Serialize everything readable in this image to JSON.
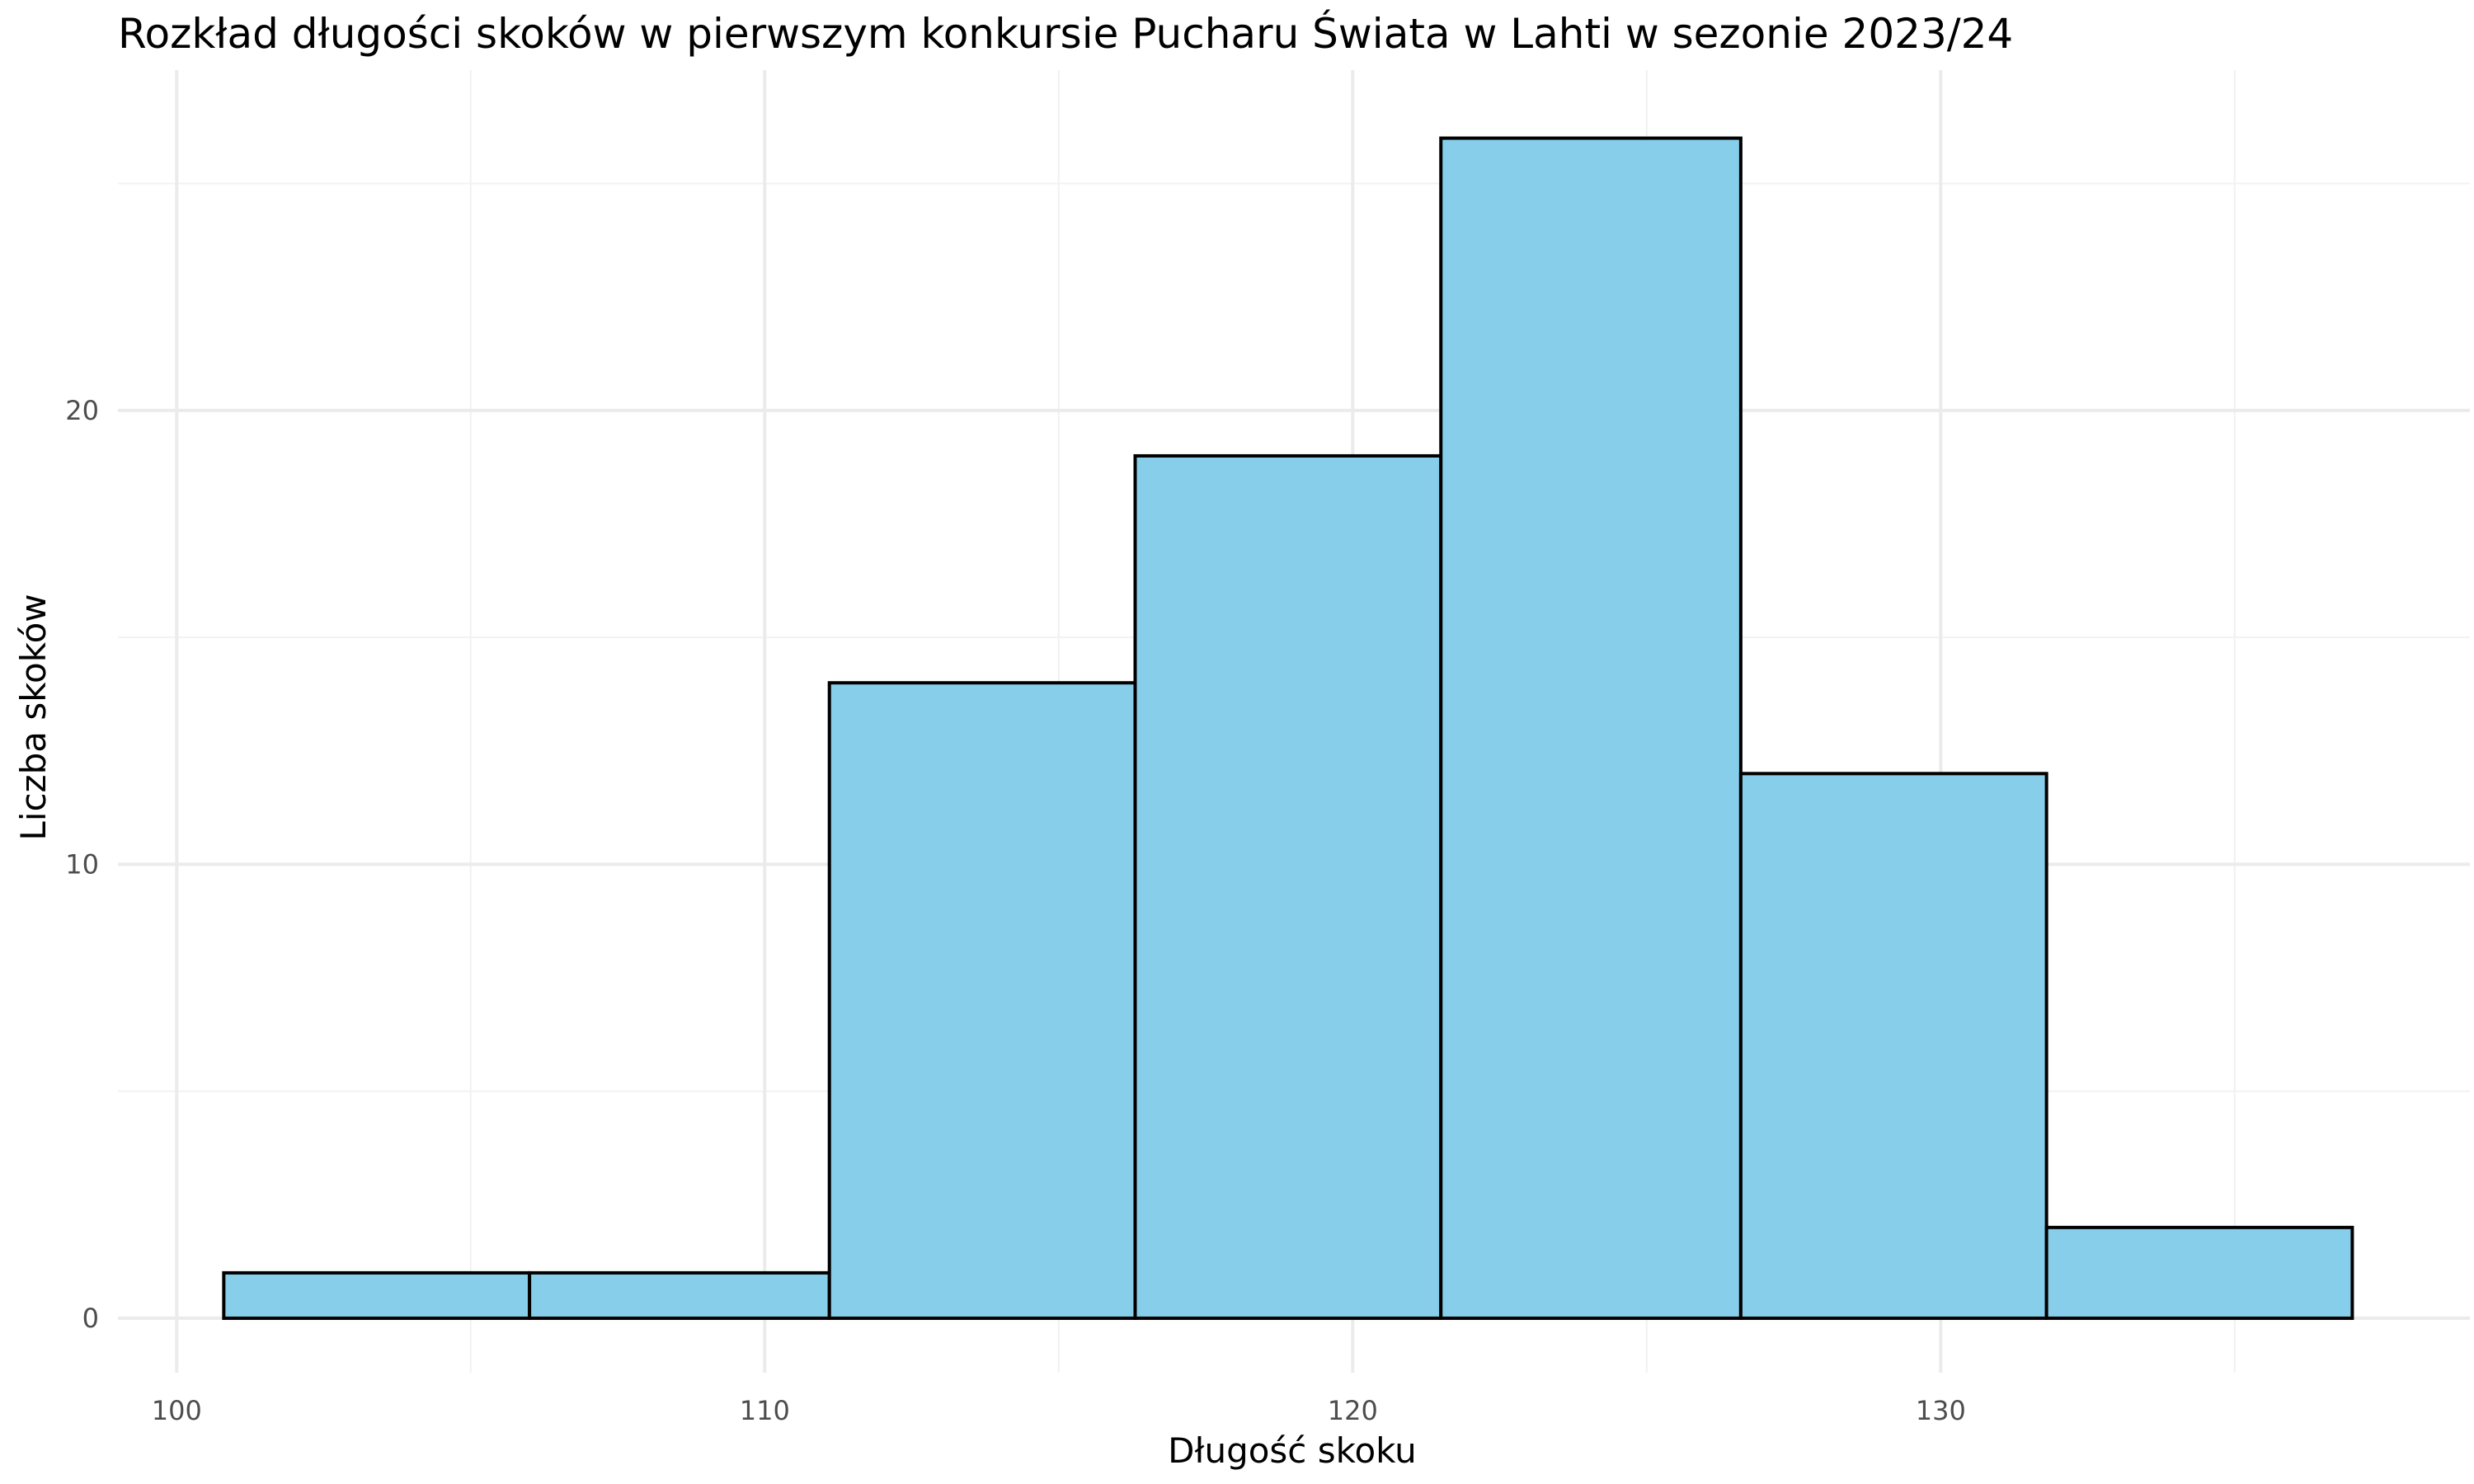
{
  "chart_data": {
    "type": "bar",
    "title": "Rozkład długości skoków w pierwszym konkursie Pucharu Świata w Lahti w sezonie 2023/24",
    "xlabel": "Długość skoku",
    "ylabel": "Liczba skoków",
    "bin_edges": [
      100.8,
      106.0,
      111.1,
      116.3,
      121.5,
      126.6,
      131.8,
      137.0
    ],
    "values": [
      1,
      1,
      14,
      19,
      26,
      12,
      2
    ],
    "xlim": [
      99,
      139
    ],
    "ylim": [
      -1.2,
      27.5
    ],
    "x_ticks": [
      100,
      110,
      120,
      130
    ],
    "x_minor_ticks": [
      105,
      115,
      125,
      135
    ],
    "y_ticks": [
      0,
      10,
      20
    ],
    "y_minor_ticks": [
      5,
      15,
      25
    ],
    "grid": true,
    "legend": "none",
    "colors": {
      "bar_fill": "#87CEEB",
      "bar_stroke": "#000000",
      "grid_major": "#EBEBEB",
      "grid_minor": "#F2F2F2",
      "text": "#000000",
      "tick_text": "#4D4D4D"
    }
  }
}
